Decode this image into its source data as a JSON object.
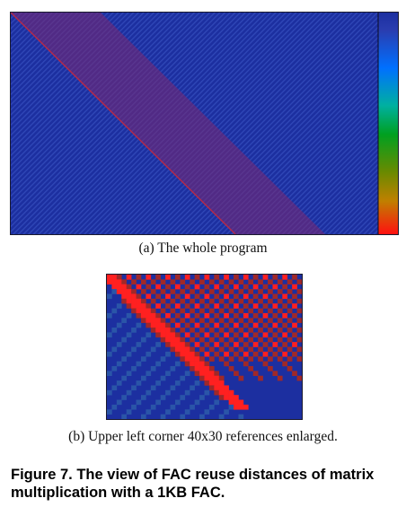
{
  "figure": {
    "caption": "Figure 7. The view of FAC reuse distances of matrix multiplication with a 1KB FAC.",
    "panel_a": {
      "caption": "(a) The whole program",
      "colorscale": [
        "#ff0000",
        "#ff8800",
        "#c8a000",
        "#00a000",
        "#00c8a0",
        "#0080ff",
        "#1c2fa0"
      ]
    },
    "panel_b": {
      "caption": "(b) Upper left corner 40x30 references enlarged."
    },
    "colors": {
      "background": "#1c2fa0",
      "diagonal_band": "#8a2a7a",
      "hot": "#ff2020",
      "medium": "#a02828",
      "cool": "#2a55a8"
    }
  }
}
